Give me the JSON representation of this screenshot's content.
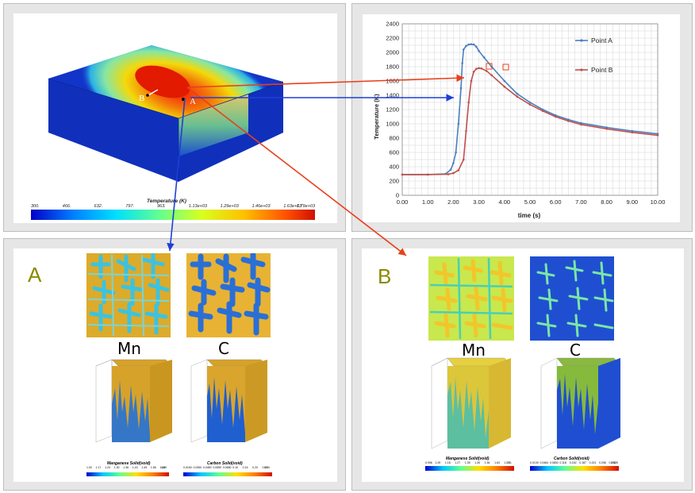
{
  "top_left": {
    "point_b": "B",
    "point_a": "A",
    "colorbar_title": "Temperature  (K)",
    "colorbar_ticks": [
      "300.",
      "466.",
      "632.",
      "797.",
      "963.",
      "1.13e+03",
      "1.29e+03",
      "1.46e+03",
      "1.63e+03",
      "1.79e+03"
    ]
  },
  "chart_data": {
    "type": "line",
    "xlabel": "time (s)",
    "ylabel": "Temperature (K)",
    "xlim": [
      0,
      10
    ],
    "ylim": [
      0,
      2400
    ],
    "xticks": [
      "0.00",
      "1.00",
      "2.00",
      "3.00",
      "4.00",
      "5.00",
      "6.00",
      "7.00",
      "8.00",
      "9.00",
      "10.00"
    ],
    "yticks": [
      "0",
      "200",
      "400",
      "600",
      "800",
      "1000",
      "1200",
      "1400",
      "1600",
      "1800",
      "2000",
      "2200",
      "2400"
    ],
    "grid": true,
    "legend_position": "top-right",
    "series": [
      {
        "name": "Point A",
        "color": "#4a7fc1",
        "x": [
          0,
          1.0,
          1.7,
          1.9,
          2.0,
          2.1,
          2.2,
          2.3,
          2.35,
          2.4,
          2.5,
          2.6,
          2.7,
          2.8,
          2.9,
          3.0,
          3.2,
          3.5,
          4.0,
          4.5,
          5.0,
          5.5,
          6.0,
          6.5,
          7.0,
          8.0,
          9.0,
          10.0
        ],
        "y": [
          290,
          290,
          300,
          360,
          450,
          600,
          1000,
          1500,
          1850,
          2040,
          2090,
          2110,
          2115,
          2110,
          2080,
          2020,
          1930,
          1800,
          1600,
          1420,
          1300,
          1200,
          1120,
          1060,
          1010,
          950,
          900,
          860
        ]
      },
      {
        "name": "Point B",
        "color": "#c0504d",
        "x": [
          0,
          1.0,
          1.8,
          2.0,
          2.2,
          2.4,
          2.5,
          2.6,
          2.7,
          2.8,
          2.9,
          3.0,
          3.1,
          3.3,
          3.5,
          4.0,
          4.5,
          5.0,
          5.5,
          6.0,
          6.5,
          7.0,
          8.0,
          9.0,
          10.0
        ],
        "y": [
          290,
          290,
          295,
          310,
          350,
          500,
          900,
          1300,
          1600,
          1730,
          1770,
          1780,
          1775,
          1740,
          1680,
          1520,
          1380,
          1270,
          1180,
          1100,
          1040,
          990,
          930,
          880,
          840
        ]
      }
    ]
  },
  "bottom_left": {
    "letter": "A",
    "mn_label": "Mn",
    "c_label": "C",
    "mn_colorbar_title": "Manganese Solid(void)",
    "c_colorbar_title": "Carbon Solid(void)",
    "mn_ticks": [
      "1.00",
      "1.17",
      "1.24",
      "1.30",
      "1.36",
      "1.43",
      "1.49",
      "1.56",
      "1.62",
      "1.69"
    ],
    "c_ticks": [
      "0.0150",
      "0.0350",
      "0.0450",
      "0.0550",
      "0.0650",
      "0.10",
      "0.15",
      "0.20",
      "0.25",
      "0.30"
    ]
  },
  "bottom_right": {
    "letter": "B",
    "mn_label": "Mn",
    "c_label": "C",
    "mn_colorbar_title": "Manganese Solid(void)",
    "c_colorbar_title": "Carbon Solid(void)",
    "mn_ticks": [
      "0.996",
      "1.09",
      "1.18",
      "1.27",
      "1.35",
      "1.45",
      "1.54",
      "1.63",
      "1.72",
      "1.81"
    ],
    "c_ticks": [
      "0.0139",
      "0.0484",
      "0.0830",
      "0.118",
      "0.152",
      "0.187",
      "0.221",
      "0.256",
      "0.290",
      "0.325"
    ]
  },
  "colors": {
    "arrow_red": "#e8401c",
    "arrow_blue": "#1f3fd6",
    "mn_orange": "#dcab2a",
    "blue": "#1f5fd0",
    "cyan": "#30c8e6",
    "yellow_green": "#c8e04a"
  }
}
